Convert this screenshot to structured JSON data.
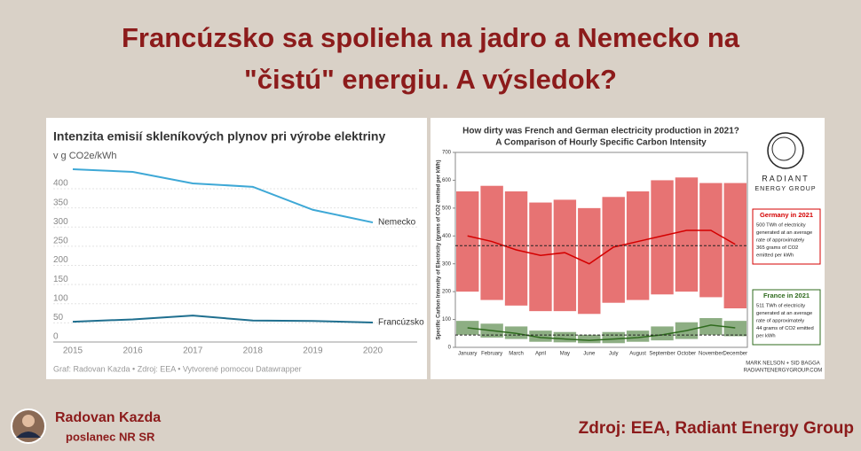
{
  "header": {
    "title_lines": [
      "Francúzsko sa spolieha na jadro a Nemecko na",
      "\"čistú\" energiu. A výsledok?"
    ]
  },
  "chart_data": [
    {
      "type": "line",
      "title": "Intenzita emisií skleníkových plynov pri výrobe elektriny",
      "subtitle": "v g CO2e/kWh",
      "x": [
        2015,
        2016,
        2017,
        2018,
        2019,
        2020
      ],
      "xlim": [
        2015,
        2020
      ],
      "xticks": [
        2015,
        2016,
        2017,
        2018,
        2019,
        2020
      ],
      "ylim": [
        0,
        450
      ],
      "yticks": [
        0,
        50,
        100,
        150,
        200,
        250,
        300,
        350,
        400
      ],
      "grid": true,
      "series": [
        {
          "name": "Nemecko",
          "color": "#3ea8d6",
          "values": [
            451,
            444,
            414,
            405,
            345,
            312
          ]
        },
        {
          "name": "Francúzsko",
          "color": "#1f6f8f",
          "values": [
            53,
            59,
            69,
            56,
            55,
            51
          ]
        }
      ],
      "note": "Graf: Radovan Kazda • Zdroj: EEA • Vytvorené pomocou Datawrapper"
    },
    {
      "type": "band",
      "title": "How dirty was French and German electricity production in 2021?",
      "subtitle": "A Comparison of Hourly Specific Carbon Intensity",
      "y_label": "Specific Carbon Intensity of Electricity (grams of CO2 emitted per kWh)",
      "categories": [
        "January",
        "February",
        "March",
        "April",
        "May",
        "June",
        "July",
        "August",
        "September",
        "October",
        "November",
        "December"
      ],
      "ylim": [
        0,
        700
      ],
      "yticks": [
        0,
        100,
        200,
        300,
        400,
        500,
        600,
        700
      ],
      "series": [
        {
          "name": "Germany in 2021",
          "color": "#d40000",
          "values": [
            400,
            380,
            350,
            330,
            340,
            300,
            360,
            380,
            400,
            420,
            420,
            370
          ],
          "low": [
            200,
            170,
            150,
            130,
            130,
            120,
            160,
            170,
            190,
            200,
            180,
            140
          ],
          "high": [
            560,
            580,
            560,
            520,
            530,
            500,
            540,
            560,
            600,
            610,
            590,
            590
          ],
          "average": 365,
          "note_lines": [
            "500 TWh of electricity",
            "generated at an average",
            "rate of approximately",
            "365 grams of CO2",
            "emitted per kWh"
          ]
        },
        {
          "name": "France in 2021",
          "color": "#2f6b1e",
          "values": [
            70,
            60,
            50,
            35,
            30,
            25,
            30,
            35,
            45,
            60,
            80,
            70
          ],
          "low": [
            45,
            35,
            30,
            20,
            18,
            15,
            15,
            20,
            25,
            30,
            45,
            40
          ],
          "high": [
            95,
            85,
            75,
            60,
            55,
            45,
            55,
            60,
            75,
            90,
            105,
            95
          ],
          "average": 44,
          "note_lines": [
            "511 TWh of electricity",
            "generated at an average",
            "rate of approximately",
            "44 grams of CO2 emitted",
            "per kWh"
          ]
        }
      ],
      "logo_lines": [
        "RADIANT",
        "ENERGY GROUP"
      ],
      "credit_lines": [
        "MARK NELSON + SID BAGGA",
        "RADIANTENERGYGROUP.COM"
      ]
    }
  ],
  "footer": {
    "name": "Radovan Kazda",
    "role": "poslanec NR SR",
    "source": "Zdroj: EEA, Radiant Energy Group"
  }
}
